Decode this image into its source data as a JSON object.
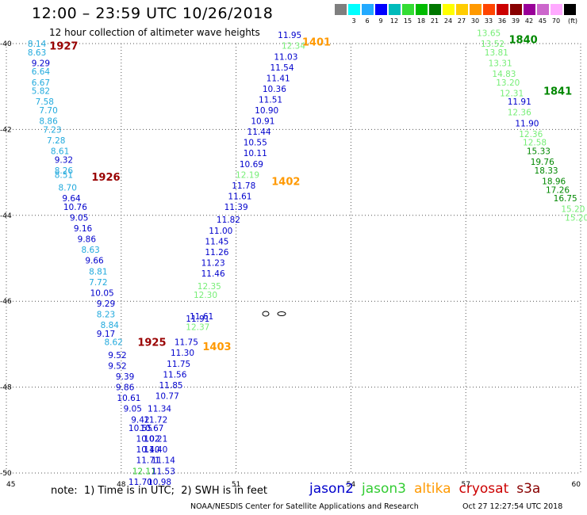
{
  "header": {
    "title": "12:00 – 23:59 UTC 10/26/2018",
    "subtitle": "12 hour collection of altimeter wave heights"
  },
  "scale_legend": {
    "colors": [
      "#7f7f7f",
      "#00ffff",
      "#22aaff",
      "#0000ff",
      "#00bbbb",
      "#33dd33",
      "#00bb00",
      "#007700",
      "#ffff00",
      "#ffcc00",
      "#ff9900",
      "#ff4400",
      "#cc0000",
      "#880000",
      "#990099",
      "#cc66cc",
      "#ffaaff",
      "#000000"
    ],
    "labels": [
      "3",
      "6",
      "9",
      "12",
      "15",
      "18",
      "21",
      "24",
      "27",
      "30",
      "33",
      "36",
      "39",
      "42",
      "45",
      "70"
    ],
    "unit": "(ft)"
  },
  "colors": {
    "jason2": "#0000cc",
    "jason3": "#33cc33",
    "altika": "#ff9900",
    "cryosat": "#cc0000",
    "s3a": "#880000",
    "cyan_band": "#22aadd",
    "light_green": "#77ee77",
    "dark_green": "#008800",
    "label_cryo": "#990000"
  },
  "footer": {
    "note": "note:  1) Time is in UTC;  2) SWH is in feet",
    "credit": "NOAA/NESDIS Center for Satellite Applications and Research",
    "timestamp": "Oct 27 12:27:54 UTC 2018",
    "satellites": [
      {
        "name": "jason2",
        "color": "#0000cc"
      },
      {
        "name": "jason3",
        "color": "#33cc33"
      },
      {
        "name": "altika",
        "color": "#ff9900"
      },
      {
        "name": "cryosat",
        "color": "#cc0000"
      },
      {
        "name": "s3a",
        "color": "#880000"
      }
    ]
  },
  "chart_data": {
    "type": "scatter",
    "xlim": [
      45,
      60
    ],
    "ylim": [
      -50,
      -40
    ],
    "xticks": [
      "45",
      "48",
      "51",
      "54",
      "57",
      "60"
    ],
    "yticks": [
      "-40",
      "-42",
      "-44",
      "-46",
      "-48",
      "-50"
    ],
    "grid": true,
    "series": [
      {
        "name": "1927",
        "color": "#22aadd",
        "points": [
          {
            "x": 45.8,
            "y": -40.0,
            "v": "8.14"
          },
          {
            "x": 45.8,
            "y": -40.2,
            "v": "8.63"
          },
          {
            "x": 45.9,
            "y": -40.45,
            "v": "9.29",
            "c": "#0000cc"
          },
          {
            "x": 45.9,
            "y": -40.65,
            "v": "6.64"
          },
          {
            "x": 45.9,
            "y": -40.9,
            "v": "6.67"
          },
          {
            "x": 45.9,
            "y": -41.1,
            "v": "5.82"
          },
          {
            "x": 46.0,
            "y": -41.35,
            "v": "7.58"
          },
          {
            "x": 46.1,
            "y": -41.55,
            "v": "7.70"
          },
          {
            "x": 46.1,
            "y": -41.8,
            "v": "8.86"
          },
          {
            "x": 46.2,
            "y": -42.0,
            "v": "7.23"
          },
          {
            "x": 46.3,
            "y": -42.25,
            "v": "7.28"
          },
          {
            "x": 46.4,
            "y": -42.5,
            "v": "8.61"
          },
          {
            "x": 46.5,
            "y": -42.7,
            "v": "9.32",
            "c": "#0000cc"
          },
          {
            "x": 46.5,
            "y": -42.95,
            "v": "8.26"
          },
          {
            "x": 46.5,
            "y": -43.05,
            "v": "8.51"
          },
          {
            "x": 46.6,
            "y": -43.35,
            "v": "8.70"
          },
          {
            "x": 46.7,
            "y": -43.6,
            "v": "9.64",
            "c": "#0000cc"
          },
          {
            "x": 46.8,
            "y": -43.8,
            "v": "10.76",
            "c": "#0000cc"
          },
          {
            "x": 46.9,
            "y": -44.05,
            "v": "9.05",
            "c": "#0000cc"
          },
          {
            "x": 47.0,
            "y": -44.3,
            "v": "9.16",
            "c": "#0000cc"
          },
          {
            "x": 47.1,
            "y": -44.55,
            "v": "9.86",
            "c": "#0000cc"
          },
          {
            "x": 47.2,
            "y": -44.8,
            "v": "8.63"
          },
          {
            "x": 47.3,
            "y": -45.05,
            "v": "9.66",
            "c": "#0000cc"
          },
          {
            "x": 47.4,
            "y": -45.3,
            "v": "8.81"
          },
          {
            "x": 47.4,
            "y": -45.55,
            "v": "7.72"
          },
          {
            "x": 47.5,
            "y": -45.8,
            "v": "10.05",
            "c": "#0000cc"
          },
          {
            "x": 47.6,
            "y": -46.05,
            "v": "9.29",
            "c": "#0000cc"
          },
          {
            "x": 47.6,
            "y": -46.3,
            "v": "8.23"
          },
          {
            "x": 47.7,
            "y": -46.55,
            "v": "8.84"
          },
          {
            "x": 47.6,
            "y": -46.75,
            "v": "9.17",
            "c": "#0000cc"
          },
          {
            "x": 47.8,
            "y": -46.95,
            "v": "8.62"
          },
          {
            "x": 47.9,
            "y": -47.25,
            "v": "9.52",
            "c": "#0000cc"
          },
          {
            "x": 47.9,
            "y": -47.5,
            "v": "9.52",
            "c": "#0000cc"
          },
          {
            "x": 48.1,
            "y": -47.75,
            "v": "9.39",
            "c": "#0000cc"
          },
          {
            "x": 48.1,
            "y": -48.0,
            "v": "9.86",
            "c": "#0000cc"
          },
          {
            "x": 48.2,
            "y": -48.25,
            "v": "10.61",
            "c": "#0000cc"
          },
          {
            "x": 48.3,
            "y": -48.5,
            "v": "9.05",
            "c": "#0000cc"
          },
          {
            "x": 48.5,
            "y": -48.75,
            "v": "9.42",
            "c": "#0000cc"
          },
          {
            "x": 48.5,
            "y": -48.95,
            "v": "10.55",
            "c": "#0000cc"
          },
          {
            "x": 48.7,
            "y": -49.2,
            "v": "10.02",
            "c": "#0000cc"
          },
          {
            "x": 48.7,
            "y": -49.45,
            "v": "10.40",
            "c": "#0000cc"
          },
          {
            "x": 48.7,
            "y": -49.7,
            "v": "11.71",
            "c": "#0000cc"
          },
          {
            "x": 48.6,
            "y": -49.95,
            "v": "12.11",
            "c": "#33cc33"
          },
          {
            "x": 48.5,
            "y": -50.2,
            "v": "11.70",
            "c": "#0000cc"
          }
        ]
      },
      {
        "name": "1925",
        "color": "#0000cc",
        "points": [
          {
            "x": 49.0,
            "y": -50.2,
            "v": "10.98"
          },
          {
            "x": 49.1,
            "y": -49.95,
            "v": "11.53"
          },
          {
            "x": 49.1,
            "y": -49.7,
            "v": "11.14"
          },
          {
            "x": 48.9,
            "y": -49.45,
            "v": "11.40"
          },
          {
            "x": 48.9,
            "y": -49.2,
            "v": "10.21"
          },
          {
            "x": 48.8,
            "y": -48.95,
            "v": "10.67"
          },
          {
            "x": 48.9,
            "y": -48.75,
            "v": "11.72"
          },
          {
            "x": 49.0,
            "y": -48.5,
            "v": "11.34"
          },
          {
            "x": 49.2,
            "y": -48.2,
            "v": "10.77"
          },
          {
            "x": 49.3,
            "y": -47.95,
            "v": "11.85"
          },
          {
            "x": 49.4,
            "y": -47.7,
            "v": "11.56"
          },
          {
            "x": 49.5,
            "y": -47.45,
            "v": "11.75"
          },
          {
            "x": 49.6,
            "y": -47.2,
            "v": "11.30"
          },
          {
            "x": 49.7,
            "y": -46.95,
            "v": "11.75"
          },
          {
            "x": 50.0,
            "y": -46.6,
            "v": "12.37",
            "c": "#77ee77"
          },
          {
            "x": 50.0,
            "y": -46.4,
            "v": "11.91"
          },
          {
            "x": 50.1,
            "y": -46.35,
            "v": "11.61"
          },
          {
            "x": 50.2,
            "y": -45.85,
            "v": "12.30",
            "c": "#77ee77"
          },
          {
            "x": 50.3,
            "y": -45.65,
            "v": "12.35",
            "c": "#77ee77"
          },
          {
            "x": 50.4,
            "y": -45.35,
            "v": "11.46"
          },
          {
            "x": 50.4,
            "y": -45.1,
            "v": "11.23"
          },
          {
            "x": 50.5,
            "y": -44.85,
            "v": "11.26"
          },
          {
            "x": 50.5,
            "y": -44.6,
            "v": "11.45"
          },
          {
            "x": 50.6,
            "y": -44.35,
            "v": "11.00"
          },
          {
            "x": 50.8,
            "y": -44.1,
            "v": "11.82"
          },
          {
            "x": 51.0,
            "y": -43.8,
            "v": "11.39"
          },
          {
            "x": 51.1,
            "y": -43.55,
            "v": "11.61"
          },
          {
            "x": 51.2,
            "y": -43.3,
            "v": "11.78"
          },
          {
            "x": 51.3,
            "y": -43.05,
            "v": "12.19",
            "c": "#77ee77"
          },
          {
            "x": 51.4,
            "y": -42.8,
            "v": "10.69"
          },
          {
            "x": 51.5,
            "y": -42.55,
            "v": "10.11"
          },
          {
            "x": 51.5,
            "y": -42.3,
            "v": "10.55"
          },
          {
            "x": 51.6,
            "y": -42.05,
            "v": "11.44"
          },
          {
            "x": 51.7,
            "y": -41.8,
            "v": "10.91"
          },
          {
            "x": 51.8,
            "y": -41.55,
            "v": "10.90"
          },
          {
            "x": 51.9,
            "y": -41.3,
            "v": "11.51"
          },
          {
            "x": 52.0,
            "y": -41.05,
            "v": "10.36"
          },
          {
            "x": 52.1,
            "y": -40.8,
            "v": "11.41"
          },
          {
            "x": 52.2,
            "y": -40.55,
            "v": "11.54"
          },
          {
            "x": 52.3,
            "y": -40.3,
            "v": "11.03"
          },
          {
            "x": 52.5,
            "y": -40.05,
            "v": "12.34",
            "c": "#77ee77"
          },
          {
            "x": 52.4,
            "y": -39.8,
            "v": "11.95"
          }
        ]
      },
      {
        "name": "1841",
        "color": "#77ee77",
        "points": [
          {
            "x": 57.6,
            "y": -39.75,
            "v": "13.65"
          },
          {
            "x": 57.7,
            "y": -40.0,
            "v": "13.52"
          },
          {
            "x": 57.8,
            "y": -40.2,
            "v": "13.81"
          },
          {
            "x": 57.9,
            "y": -40.45,
            "v": "13.31"
          },
          {
            "x": 58.0,
            "y": -40.7,
            "v": "14.83"
          },
          {
            "x": 58.1,
            "y": -40.9,
            "v": "13.20"
          },
          {
            "x": 58.2,
            "y": -41.15,
            "v": "12.31"
          },
          {
            "x": 58.4,
            "y": -41.35,
            "v": "11.91",
            "c": "#0000cc"
          },
          {
            "x": 58.4,
            "y": -41.6,
            "v": "12.36"
          },
          {
            "x": 58.6,
            "y": -41.85,
            "v": "11.90",
            "c": "#0000cc"
          },
          {
            "x": 58.7,
            "y": -42.1,
            "v": "12.36"
          },
          {
            "x": 58.8,
            "y": -42.3,
            "v": "12.58"
          },
          {
            "x": 58.9,
            "y": -42.5,
            "v": "15.33",
            "c": "#008800"
          },
          {
            "x": 59.0,
            "y": -42.75,
            "v": "19.76",
            "c": "#008800"
          },
          {
            "x": 59.1,
            "y": -42.95,
            "v": "18.33",
            "c": "#008800"
          },
          {
            "x": 59.3,
            "y": -43.2,
            "v": "18.96",
            "c": "#008800"
          },
          {
            "x": 59.4,
            "y": -43.4,
            "v": "17.26",
            "c": "#008800"
          },
          {
            "x": 59.6,
            "y": -43.6,
            "v": "16.75",
            "c": "#008800"
          },
          {
            "x": 59.8,
            "y": -43.85,
            "v": "15.20"
          },
          {
            "x": 59.9,
            "y": -44.05,
            "v": "15.20"
          }
        ]
      }
    ],
    "track_labels": [
      {
        "text": "1927",
        "x": 46.5,
        "y": -40.05,
        "color": "#990000"
      },
      {
        "text": "1926",
        "x": 47.6,
        "y": -43.1,
        "color": "#990000"
      },
      {
        "text": "1925",
        "x": 48.8,
        "y": -46.95,
        "color": "#990000"
      },
      {
        "text": "1401",
        "x": 53.1,
        "y": -39.95,
        "color": "#ff9900"
      },
      {
        "text": "1402",
        "x": 52.3,
        "y": -43.2,
        "color": "#ff9900"
      },
      {
        "text": "1403",
        "x": 50.5,
        "y": -47.05,
        "color": "#ff9900"
      },
      {
        "text": "1840",
        "x": 58.5,
        "y": -39.9,
        "color": "#008800"
      },
      {
        "text": "1841",
        "x": 59.4,
        "y": -41.1,
        "color": "#008800"
      }
    ]
  }
}
